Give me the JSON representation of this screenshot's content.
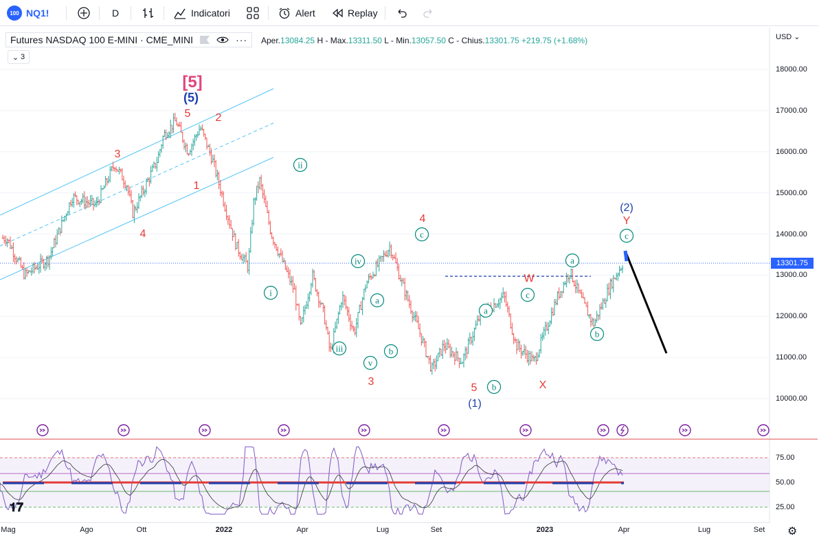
{
  "toolbar": {
    "symbol_badge": "100",
    "symbol": "NQ1!",
    "interval": "D",
    "indicators_label": "Indicatori",
    "alert_label": "Alert",
    "replay_label": "Replay"
  },
  "legend": {
    "title": "Futures NASDAQ 100 E-MINI · CME_MINI",
    "open_label": "Aper.",
    "open": "13084.25",
    "high_label": "H - Max.",
    "high": "13311.50",
    "low_label": "L - Min.",
    "low": "13057.50",
    "close_label": "C - Chius.",
    "close": "13301.75",
    "change": "+219.75 (+1.68%)",
    "indicator_count": "3"
  },
  "price_scale": {
    "currency": "USD",
    "current_price": "13301.75",
    "ticks": [
      "18000.00",
      "17000.00",
      "16000.00",
      "15000.00",
      "14000.00",
      "13000.00",
      "12000.00",
      "11000.00",
      "10000.00"
    ]
  },
  "oscillator_scale": {
    "ticks": [
      "75.00",
      "50.00",
      "25.00"
    ]
  },
  "time_axis": {
    "labels": [
      "Mag",
      "Ago",
      "Ott",
      "2022",
      "Apr",
      "Lug",
      "Set",
      "2023",
      "Apr",
      "Lug",
      "Set"
    ],
    "bold": [
      "2022",
      "2023"
    ]
  },
  "wave_labels": {
    "big5": "[5]",
    "w5_blue": "(5)",
    "w1_blue": "(1)",
    "w2_blue": "(2)",
    "red": [
      "5",
      "2",
      "3",
      "1",
      "4",
      "4",
      "3",
      "5",
      "W",
      "X",
      "Y"
    ],
    "green": [
      "ii",
      "i",
      "iv",
      "iii",
      "v",
      "a",
      "b",
      "c",
      "a",
      "b",
      "c",
      "a",
      "b",
      "c"
    ]
  },
  "colors": {
    "up": "#26a69a",
    "down": "#ef5350",
    "accent": "#2962ff",
    "channel": "#4fc3f7",
    "wave_red": "#e53935",
    "wave_green": "#00897b",
    "wave_blue": "#1e40af",
    "big5": "#e0457b",
    "rsi": "#7e57c2",
    "rsi_band": "#ede7f6"
  },
  "chart_data": {
    "type": "line",
    "title": "Futures NASDAQ 100 E-MINI · CME_MINI",
    "xlabel": "",
    "ylabel": "",
    "ylim": [
      9600,
      18600
    ],
    "x": [
      "Mag",
      "Ago",
      "Ott",
      "2022",
      "Apr",
      "Lug",
      "Set",
      "2023",
      "Apr"
    ],
    "series": [
      {
        "name": "",
        "points": [
          [
            0,
            13900
          ],
          [
            0.3,
            13000
          ],
          [
            0.7,
            13400
          ],
          [
            1.1,
            14900
          ],
          [
            1.5,
            14700
          ],
          [
            1.8,
            15700
          ],
          [
            2.0,
            15200
          ],
          [
            2.1,
            14500
          ],
          [
            2.5,
            15800
          ],
          [
            2.6,
            16400
          ],
          [
            2.8,
            16750
          ],
          [
            3.0,
            16000
          ],
          [
            3.2,
            16600
          ],
          [
            3.4,
            15800
          ],
          [
            3.6,
            14700
          ],
          [
            3.8,
            13700
          ],
          [
            4.0,
            13200
          ],
          [
            4.1,
            14800
          ],
          [
            4.2,
            15300
          ],
          [
            4.4,
            14000
          ],
          [
            4.8,
            12600
          ],
          [
            4.9,
            11700
          ],
          [
            5.1,
            13000
          ],
          [
            5.3,
            12000
          ],
          [
            5.4,
            11100
          ],
          [
            5.6,
            12500
          ],
          [
            5.8,
            11600
          ],
          [
            6.0,
            12800
          ],
          [
            6.4,
            13700
          ],
          [
            6.6,
            12800
          ],
          [
            6.9,
            11600
          ],
          [
            7.1,
            10700
          ],
          [
            7.3,
            11300
          ],
          [
            7.6,
            10900
          ],
          [
            7.9,
            12000
          ],
          [
            8.3,
            12500
          ],
          [
            8.5,
            11300
          ],
          [
            8.8,
            10900
          ],
          [
            9.2,
            12500
          ],
          [
            9.4,
            13100
          ],
          [
            9.6,
            12400
          ],
          [
            9.8,
            11800
          ],
          [
            10.1,
            12800
          ],
          [
            10.3,
            13300
          ]
        ]
      },
      {
        "name": "",
        "points": [
          [
            10.3,
            13300
          ],
          [
            10.9,
            11100
          ]
        ]
      }
    ],
    "oscillator": {
      "ylim": [
        15,
        90
      ],
      "levels": [
        75,
        50,
        25
      ],
      "midline": 50
    }
  }
}
